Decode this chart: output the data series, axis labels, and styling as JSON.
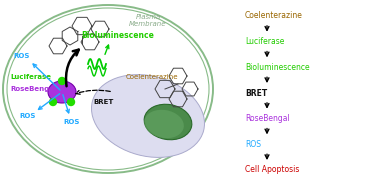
{
  "bg_color": "#ffffff",
  "cell_outline_color": "#88bb88",
  "plasma_membrane_text": "Plasma\nMembrane",
  "plasma_membrane_color": "#88aa88",
  "cell_fill_color": "#ddddf0",
  "nucleus_fill": "#5a9a5a",
  "nucleus_edge": "#2a6a2a",
  "blob_color": "#aa33dd",
  "blob_edge": "#7700aa",
  "green_dot": "#22dd00",
  "luciferase_color": "#22cc00",
  "rosebengal_color": "#aa33dd",
  "biolum_color": "#22cc00",
  "bret_color": "#111111",
  "coelen_color": "#996600",
  "ros_color": "#22aaff",
  "wave_color": "#00cc00",
  "arrow_color": "#111111",
  "right_items": [
    {
      "text": "Coelenterazine",
      "color": "#996600",
      "bold": false
    },
    {
      "text": "Luciferase",
      "color": "#22cc00",
      "bold": false
    },
    {
      "text": "Bioluminescence",
      "color": "#22cc00",
      "bold": false
    },
    {
      "text": "BRET",
      "color": "#111111",
      "bold": true
    },
    {
      "text": "RoseBengal",
      "color": "#aa33dd",
      "bold": false
    },
    {
      "text": "ROS",
      "color": "#22aaff",
      "bold": false
    },
    {
      "text": "Cell Apoptosis",
      "color": "#cc0000",
      "bold": false
    }
  ]
}
